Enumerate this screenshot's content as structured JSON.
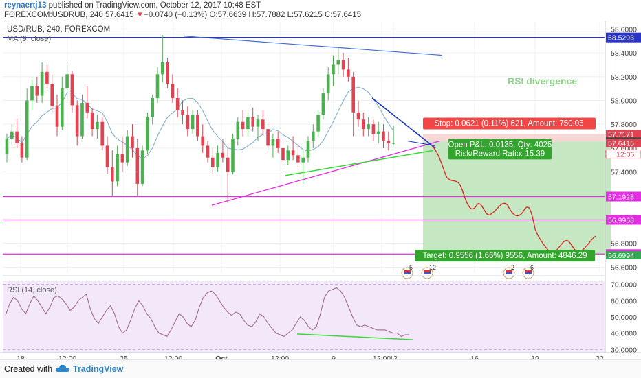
{
  "header": {
    "username": "reynaertj13",
    "published": "published on TradingView.com, October 12, 2017 10:48 EST",
    "symbol_line": "FOREXCOM:USDRUB, 240",
    "last": "57.6415",
    "arrow": "▼",
    "change": "−0.0740 (−0.13%)",
    "ohlc": "O:57.6639 H:57.7882 L:57.6215 C:57.6415"
  },
  "colors": {
    "up": "#4caf50",
    "down": "#e04452",
    "ma": "#8fb4cf",
    "rsi_line": "#9b5f7c",
    "rsi_bg": "#f3e8fa",
    "magenta": "#e22de2",
    "trend_blue": "#3f6ed8",
    "dark_blue": "#1030c8",
    "green_line": "#38d838",
    "projection": "#dd2020",
    "target_zone": "#c5e8c2",
    "stop_zone": "#f7d6d6"
  },
  "chart_data": [
    {
      "type": "candlestick",
      "title": "USD/RUB, 240, FOREXCOM",
      "indicator": "MA (9, close)",
      "annotation": "RSI divergence",
      "x_tick_labels": [
        "18",
        "12:00",
        "25",
        "12:00",
        "Oct",
        "12:00",
        "9",
        "12:00",
        "12",
        "16",
        "19",
        "22"
      ],
      "y_tick_labels": [
        "58.6000",
        "58.4000",
        "58.2000",
        "58.0000",
        "57.8000",
        "57.6000",
        "57.4000",
        "57.2000",
        "57.0000",
        "56.8000",
        "56.6000"
      ],
      "ylim": [
        56.55,
        58.66
      ],
      "horizontal_levels": [
        {
          "price": 58.5293,
          "label": "58.5293",
          "color": "#2a35c9"
        },
        {
          "price": 57.1928,
          "label": "57.1928",
          "color": "#e22de2"
        },
        {
          "price": 56.9968,
          "label": "56.9968",
          "color": "#e22de2"
        },
        {
          "price": 56.7098,
          "label": "56.7098",
          "color": "#e22de2"
        }
      ],
      "price_labels": [
        {
          "price": 57.7171,
          "label": "57.7171",
          "color": "#e04452"
        },
        {
          "price": 57.655,
          "label": "57.6550",
          "color": "#444444"
        },
        {
          "price": 57.6415,
          "label": "57.6415",
          "color": "#e04452"
        },
        {
          "price": 56.6994,
          "label": "56.6994",
          "color": "#35a853"
        }
      ],
      "time_label": "12:06",
      "position": {
        "entry": 57.655,
        "stop": 57.7171,
        "target": 56.6994,
        "stop_text": "Stop: 0.0621 (0.11%) 621, Amount: 750.05",
        "open_text": "Open P&L: 0.0135, Qty: 4025",
        "rr_text": "Risk/Reward Ratio: 15.39",
        "target_text": "Target: 0.9556 (1.66%) 9556, Amount: 4846.29"
      },
      "events": [
        {
          "icon": "flag-icon",
          "count": "5"
        },
        {
          "icon": "flag-icon",
          "count": "12"
        },
        {
          "icon": "flag-icon",
          "count": "2"
        },
        {
          "icon": "flag-icon",
          "count": "6"
        }
      ],
      "candles_ohlc": [
        [
          57.55,
          57.72,
          57.48,
          57.68
        ],
        [
          57.68,
          57.8,
          57.62,
          57.74
        ],
        [
          57.74,
          57.85,
          57.6,
          57.64
        ],
        [
          57.64,
          57.7,
          57.48,
          57.52
        ],
        [
          57.52,
          58.1,
          57.5,
          58.0
        ],
        [
          58.0,
          58.18,
          57.92,
          58.12
        ],
        [
          58.12,
          58.2,
          57.98,
          58.04
        ],
        [
          58.04,
          58.32,
          57.98,
          58.24
        ],
        [
          58.24,
          58.3,
          58.1,
          58.14
        ],
        [
          58.14,
          58.22,
          57.9,
          57.95
        ],
        [
          57.95,
          58.05,
          57.7,
          57.78
        ],
        [
          57.78,
          58.2,
          57.75,
          58.1
        ],
        [
          58.1,
          58.3,
          58.0,
          58.22
        ],
        [
          58.22,
          58.25,
          57.9,
          57.96
        ],
        [
          57.96,
          58.0,
          57.62,
          57.7
        ],
        [
          57.7,
          58.05,
          57.68,
          57.98
        ],
        [
          57.98,
          58.12,
          57.85,
          57.9
        ],
        [
          57.9,
          57.94,
          57.7,
          57.76
        ],
        [
          57.76,
          57.88,
          57.68,
          57.82
        ],
        [
          57.82,
          57.86,
          57.58,
          57.62
        ],
        [
          57.62,
          57.7,
          57.38,
          57.44
        ],
        [
          57.44,
          57.58,
          57.2,
          57.32
        ],
        [
          57.32,
          57.62,
          57.28,
          57.55
        ],
        [
          57.55,
          57.7,
          57.4,
          57.48
        ],
        [
          57.48,
          57.75,
          57.45,
          57.7
        ],
        [
          57.7,
          57.8,
          57.52,
          57.6
        ],
        [
          57.6,
          57.68,
          57.2,
          57.3
        ],
        [
          57.3,
          57.62,
          57.28,
          57.58
        ],
        [
          57.58,
          57.9,
          57.55,
          57.86
        ],
        [
          57.86,
          58.05,
          57.8,
          58.02
        ],
        [
          58.02,
          58.28,
          57.98,
          58.22
        ],
        [
          58.22,
          58.55,
          58.15,
          58.32
        ],
        [
          58.32,
          58.36,
          58.1,
          58.14
        ],
        [
          58.14,
          58.22,
          57.98,
          58.02
        ],
        [
          58.02,
          58.1,
          57.86,
          57.92
        ],
        [
          57.92,
          58.0,
          57.8,
          57.88
        ],
        [
          57.88,
          57.95,
          57.7,
          57.76
        ],
        [
          57.76,
          57.92,
          57.72,
          57.88
        ],
        [
          57.88,
          57.92,
          57.66,
          57.7
        ],
        [
          57.7,
          57.8,
          57.56,
          57.62
        ],
        [
          57.62,
          57.66,
          57.48,
          57.52
        ],
        [
          57.52,
          57.6,
          57.38,
          57.44
        ],
        [
          57.44,
          57.62,
          57.4,
          57.56
        ],
        [
          57.56,
          57.68,
          57.48,
          57.52
        ],
        [
          57.52,
          57.6,
          57.14,
          57.4
        ],
        [
          57.4,
          57.72,
          57.38,
          57.68
        ],
        [
          57.68,
          57.86,
          57.62,
          57.82
        ],
        [
          57.82,
          57.92,
          57.7,
          57.76
        ],
        [
          57.76,
          57.9,
          57.7,
          57.86
        ],
        [
          57.86,
          57.94,
          57.74,
          57.78
        ],
        [
          57.78,
          57.88,
          57.66,
          57.84
        ],
        [
          57.84,
          57.92,
          57.72,
          57.76
        ],
        [
          57.76,
          57.82,
          57.58,
          57.62
        ],
        [
          57.62,
          57.72,
          57.52,
          57.68
        ],
        [
          57.68,
          57.74,
          57.56,
          57.6
        ],
        [
          57.6,
          57.66,
          57.44,
          57.5
        ],
        [
          57.5,
          57.62,
          57.46,
          57.58
        ],
        [
          57.58,
          57.7,
          57.5,
          57.54
        ],
        [
          57.54,
          57.64,
          57.42,
          57.48
        ],
        [
          57.48,
          57.58,
          57.3,
          57.52
        ],
        [
          57.52,
          57.7,
          57.48,
          57.66
        ],
        [
          57.66,
          57.8,
          57.6,
          57.74
        ],
        [
          57.74,
          57.92,
          57.7,
          57.88
        ],
        [
          57.88,
          58.1,
          57.84,
          58.06
        ],
        [
          58.06,
          58.28,
          58.0,
          58.22
        ],
        [
          58.22,
          58.38,
          58.12,
          58.3
        ],
        [
          58.3,
          58.45,
          58.22,
          58.34
        ],
        [
          58.34,
          58.4,
          58.2,
          58.26
        ],
        [
          58.26,
          58.36,
          58.16,
          58.2
        ],
        [
          58.2,
          58.24,
          57.7,
          57.9
        ],
        [
          57.9,
          58.0,
          57.78,
          57.84
        ],
        [
          57.84,
          57.9,
          57.7,
          57.76
        ],
        [
          57.76,
          57.86,
          57.7,
          57.8
        ],
        [
          57.8,
          57.84,
          57.66,
          57.72
        ],
        [
          57.72,
          57.82,
          57.64,
          57.74
        ],
        [
          57.74,
          57.8,
          57.6,
          57.66
        ],
        [
          57.66,
          57.74,
          57.58,
          57.64
        ],
        [
          57.64,
          57.79,
          57.62,
          57.6415
        ]
      ]
    },
    {
      "type": "line",
      "title": "RSI (14, close)",
      "y_tick_labels": [
        "70.0000",
        "60.0000",
        "50.0000",
        "40.0000",
        "30.0000"
      ],
      "ylim": [
        28,
        72
      ],
      "values": [
        51,
        58,
        62,
        60,
        55,
        52,
        58,
        63,
        60,
        56,
        52,
        56,
        62,
        63,
        61,
        58,
        54,
        56,
        60,
        62,
        64,
        55,
        49,
        46,
        50,
        54,
        57,
        52,
        44,
        40,
        42,
        48,
        55,
        60,
        57,
        52,
        49,
        44,
        40,
        39,
        38,
        42,
        47,
        52,
        50,
        46,
        44,
        48,
        56,
        62,
        65,
        66,
        64,
        60,
        56,
        53,
        51,
        53,
        52,
        48,
        45,
        44,
        47,
        52,
        50,
        46,
        43,
        40,
        39,
        38,
        40,
        42,
        46,
        50,
        48,
        44,
        42,
        44,
        52,
        62,
        66,
        67,
        68,
        66,
        62,
        56,
        50,
        45,
        44,
        45,
        44,
        43,
        42,
        42,
        42,
        41,
        40,
        40,
        38,
        39,
        39
      ]
    }
  ],
  "footer": {
    "created_with": "Created with",
    "brand": "TradingView"
  }
}
